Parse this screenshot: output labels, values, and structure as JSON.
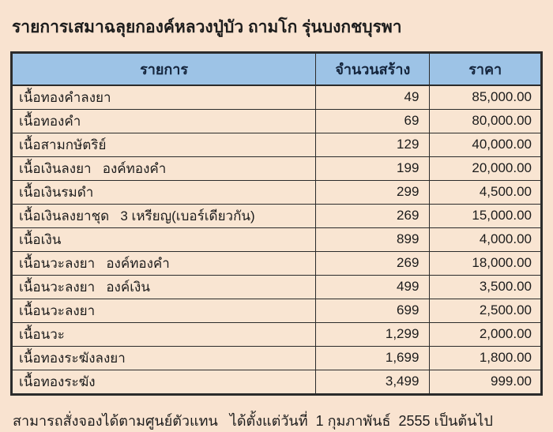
{
  "page": {
    "title": "รายการเสมาฉลุยกองค์หลวงปู่บัว ถามโก รุ่นบงกชบุรพา",
    "footer": "สามารถสั่งจองได้ตามศูนย์ตัวแทน   ได้ตั้งแต่วันที่  1 กุมภาพันธ์  2555 เป็นต้นไป"
  },
  "colors": {
    "background": "#f9e3d0",
    "cell_bg": "#f9e5d2",
    "header_bg": "#9dc3e6",
    "border": "#2b2b2b",
    "text": "#1c1c1c",
    "header_text": "#15253c"
  },
  "table": {
    "columns": [
      "รายการ",
      "จำนวนสร้าง",
      "ราคา"
    ],
    "rows": [
      {
        "item": "เนื้อทองคำลงยา",
        "quantity": "49",
        "price": "85,000.00"
      },
      {
        "item": "เนื้อทองคำ",
        "quantity": "69",
        "price": "80,000.00"
      },
      {
        "item": "เนื้อสามกษัตริย์",
        "quantity": "129",
        "price": "40,000.00"
      },
      {
        "item": "เนื้อเงินลงยา   องค์ทองคำ",
        "quantity": "199",
        "price": "20,000.00"
      },
      {
        "item": "เนื้อเงินรมดำ",
        "quantity": "299",
        "price": "4,500.00"
      },
      {
        "item": "เนื้อเงินลงยาชุด   3 เหรียญ(เบอร์เดียวกัน)",
        "quantity": "269",
        "price": "15,000.00"
      },
      {
        "item": "เนื้อเงิน",
        "quantity": "899",
        "price": "4,000.00"
      },
      {
        "item": "เนื้อนวะลงยา   องค์ทองคำ",
        "quantity": "269",
        "price": "18,000.00"
      },
      {
        "item": "เนื้อนวะลงยา   องค์เงิน",
        "quantity": "499",
        "price": "3,500.00"
      },
      {
        "item": "เนื้อนวะลงยา",
        "quantity": "699",
        "price": "2,500.00"
      },
      {
        "item": "เนื้อนวะ",
        "quantity": "1,299",
        "price": "2,000.00"
      },
      {
        "item": "เนื้อทองระฆังลงยา",
        "quantity": "1,699",
        "price": "1,800.00"
      },
      {
        "item": "เนื้อทองระฆัง",
        "quantity": "3,499",
        "price": "999.00"
      }
    ]
  }
}
